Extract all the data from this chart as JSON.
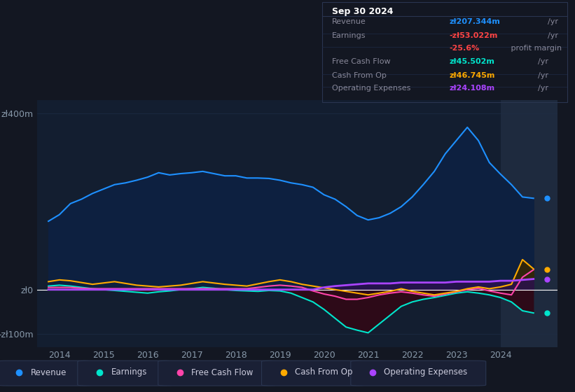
{
  "bg_color": "#131722",
  "plot_bg_color": "#131e30",
  "highlight_bg_color": "#1e2a3e",
  "grid_color": "#1e2d45",
  "zero_line_color": "#ffffff",
  "title_box": {
    "date": "Sep 30 2024",
    "rows": [
      {
        "label": "Revenue",
        "value": "zł207.344m",
        "unit": "/yr",
        "value_color": "#1e90ff",
        "label_color": "#888899"
      },
      {
        "label": "Earnings",
        "value": "-zł53.022m",
        "unit": "/yr",
        "value_color": "#ff4444",
        "label_color": "#888899"
      },
      {
        "label": "",
        "value": "-25.6%",
        "unit": " profit margin",
        "value_color": "#ff4444",
        "label_color": "#888899"
      },
      {
        "label": "Free Cash Flow",
        "value": "zł45.502m",
        "unit": "/yr",
        "value_color": "#00e5cc",
        "label_color": "#888899"
      },
      {
        "label": "Cash From Op",
        "value": "zł46.745m",
        "unit": "/yr",
        "value_color": "#ffaa00",
        "label_color": "#888899"
      },
      {
        "label": "Operating Expenses",
        "value": "zł24.108m",
        "unit": "/yr",
        "value_color": "#aa44ff",
        "label_color": "#888899"
      }
    ]
  },
  "ylim": [
    -130,
    430
  ],
  "yticks": [
    -100,
    0,
    400
  ],
  "ytick_labels": [
    "-zł100m",
    "zł0",
    "zł400m"
  ],
  "xlim_start": 2013.5,
  "xlim_end": 2025.3,
  "xticks": [
    2014,
    2015,
    2016,
    2017,
    2018,
    2019,
    2020,
    2021,
    2022,
    2023,
    2024
  ],
  "revenue_color": "#1e90ff",
  "revenue_fill_color": "#0d2040",
  "earnings_neg_fill_color": "#1a0a1a",
  "earnings_pos_fill_color": "#0a2a20",
  "earnings_color": "#00e5cc",
  "fcf_color": "#ff44aa",
  "cashfromop_color": "#ffaa00",
  "cashfromop_fill_color": "#3a2800",
  "opex_color": "#aa44ff",
  "opex_fill_color": "#2a1050",
  "legend_items": [
    {
      "label": "Revenue",
      "color": "#1e90ff"
    },
    {
      "label": "Earnings",
      "color": "#00e5cc"
    },
    {
      "label": "Free Cash Flow",
      "color": "#ff44aa"
    },
    {
      "label": "Cash From Op",
      "color": "#ffaa00"
    },
    {
      "label": "Operating Expenses",
      "color": "#aa44ff"
    }
  ],
  "revenue_data_x": [
    2013.75,
    2014.0,
    2014.25,
    2014.5,
    2014.75,
    2015.0,
    2015.25,
    2015.5,
    2015.75,
    2016.0,
    2016.25,
    2016.5,
    2016.75,
    2017.0,
    2017.25,
    2017.5,
    2017.75,
    2018.0,
    2018.25,
    2018.5,
    2018.75,
    2019.0,
    2019.25,
    2019.5,
    2019.75,
    2020.0,
    2020.25,
    2020.5,
    2020.75,
    2021.0,
    2021.25,
    2021.5,
    2021.75,
    2022.0,
    2022.25,
    2022.5,
    2022.75,
    2023.0,
    2023.25,
    2023.5,
    2023.75,
    2024.0,
    2024.25,
    2024.5,
    2024.75
  ],
  "revenue_data_y": [
    155,
    170,
    195,
    205,
    218,
    228,
    238,
    242,
    248,
    255,
    265,
    260,
    263,
    265,
    268,
    263,
    258,
    258,
    253,
    253,
    252,
    248,
    242,
    238,
    232,
    215,
    205,
    188,
    168,
    158,
    163,
    173,
    188,
    210,
    238,
    268,
    308,
    338,
    368,
    338,
    288,
    262,
    238,
    210,
    207
  ],
  "earnings_data_x": [
    2013.75,
    2014.0,
    2014.25,
    2014.5,
    2014.75,
    2015.0,
    2015.25,
    2015.5,
    2015.75,
    2016.0,
    2016.25,
    2016.5,
    2016.75,
    2017.0,
    2017.25,
    2017.5,
    2017.75,
    2018.0,
    2018.25,
    2018.5,
    2018.75,
    2019.0,
    2019.25,
    2019.5,
    2019.75,
    2020.0,
    2020.25,
    2020.5,
    2020.75,
    2021.0,
    2021.25,
    2021.5,
    2021.75,
    2022.0,
    2022.25,
    2022.5,
    2022.75,
    2023.0,
    2023.25,
    2023.5,
    2023.75,
    2024.0,
    2024.25,
    2024.5,
    2024.75
  ],
  "earnings_data_y": [
    8,
    10,
    8,
    5,
    2,
    0,
    -2,
    -4,
    -6,
    -8,
    -5,
    -3,
    0,
    2,
    5,
    3,
    0,
    -2,
    -3,
    -4,
    -2,
    -3,
    -8,
    -18,
    -28,
    -45,
    -65,
    -85,
    -92,
    -98,
    -78,
    -58,
    -38,
    -28,
    -22,
    -18,
    -13,
    -8,
    -5,
    -8,
    -12,
    -18,
    -28,
    -48,
    -53
  ],
  "fcf_data_x": [
    2013.75,
    2014.0,
    2014.25,
    2014.5,
    2014.75,
    2015.0,
    2015.25,
    2015.5,
    2015.75,
    2016.0,
    2016.25,
    2016.5,
    2016.75,
    2017.0,
    2017.25,
    2017.5,
    2017.75,
    2018.0,
    2018.25,
    2018.5,
    2018.75,
    2019.0,
    2019.25,
    2019.5,
    2019.75,
    2020.0,
    2020.25,
    2020.5,
    2020.75,
    2021.0,
    2021.25,
    2021.5,
    2021.75,
    2022.0,
    2022.25,
    2022.5,
    2022.75,
    2023.0,
    2023.25,
    2023.5,
    2023.75,
    2024.0,
    2024.25,
    2024.5,
    2024.75
  ],
  "fcf_data_y": [
    5,
    5,
    5,
    3,
    2,
    2,
    2,
    2,
    2,
    2,
    2,
    2,
    2,
    2,
    2,
    2,
    2,
    2,
    2,
    5,
    8,
    10,
    8,
    5,
    -3,
    -10,
    -15,
    -22,
    -22,
    -18,
    -12,
    -8,
    -5,
    -8,
    -12,
    -15,
    -10,
    -5,
    0,
    3,
    -3,
    -8,
    -12,
    28,
    45
  ],
  "cashfromop_data_x": [
    2013.75,
    2014.0,
    2014.25,
    2014.5,
    2014.75,
    2015.0,
    2015.25,
    2015.5,
    2015.75,
    2016.0,
    2016.25,
    2016.5,
    2016.75,
    2017.0,
    2017.25,
    2017.5,
    2017.75,
    2018.0,
    2018.25,
    2018.5,
    2018.75,
    2019.0,
    2019.25,
    2019.5,
    2019.75,
    2020.0,
    2020.25,
    2020.5,
    2020.75,
    2021.0,
    2021.25,
    2021.5,
    2021.75,
    2022.0,
    2022.25,
    2022.5,
    2022.75,
    2023.0,
    2023.25,
    2023.5,
    2023.75,
    2024.0,
    2024.25,
    2024.5,
    2024.75
  ],
  "cashfromop_data_y": [
    18,
    22,
    20,
    16,
    12,
    15,
    18,
    14,
    10,
    8,
    6,
    8,
    10,
    14,
    18,
    15,
    12,
    10,
    8,
    13,
    18,
    22,
    18,
    12,
    8,
    4,
    0,
    -4,
    -8,
    -12,
    -8,
    -4,
    2,
    -4,
    -8,
    -12,
    -8,
    -4,
    2,
    6,
    2,
    6,
    12,
    68,
    47
  ],
  "opex_data_x": [
    2013.75,
    2014.0,
    2014.25,
    2014.5,
    2014.75,
    2015.0,
    2015.25,
    2015.5,
    2015.75,
    2016.0,
    2016.25,
    2016.5,
    2016.75,
    2017.0,
    2017.25,
    2017.5,
    2017.75,
    2018.0,
    2018.25,
    2018.5,
    2018.75,
    2019.0,
    2019.25,
    2019.5,
    2019.75,
    2020.0,
    2020.25,
    2020.5,
    2020.75,
    2021.0,
    2021.25,
    2021.5,
    2021.75,
    2022.0,
    2022.25,
    2022.5,
    2022.75,
    2023.0,
    2023.25,
    2023.5,
    2023.75,
    2024.0,
    2024.25,
    2024.5,
    2024.75
  ],
  "opex_data_y": [
    0,
    0,
    0,
    0,
    0,
    0,
    0,
    0,
    0,
    0,
    0,
    0,
    0,
    0,
    0,
    0,
    0,
    0,
    0,
    0,
    0,
    0,
    0,
    0,
    0,
    5,
    8,
    10,
    12,
    14,
    14,
    14,
    16,
    16,
    16,
    16,
    16,
    18,
    18,
    18,
    18,
    20,
    20,
    22,
    24
  ]
}
